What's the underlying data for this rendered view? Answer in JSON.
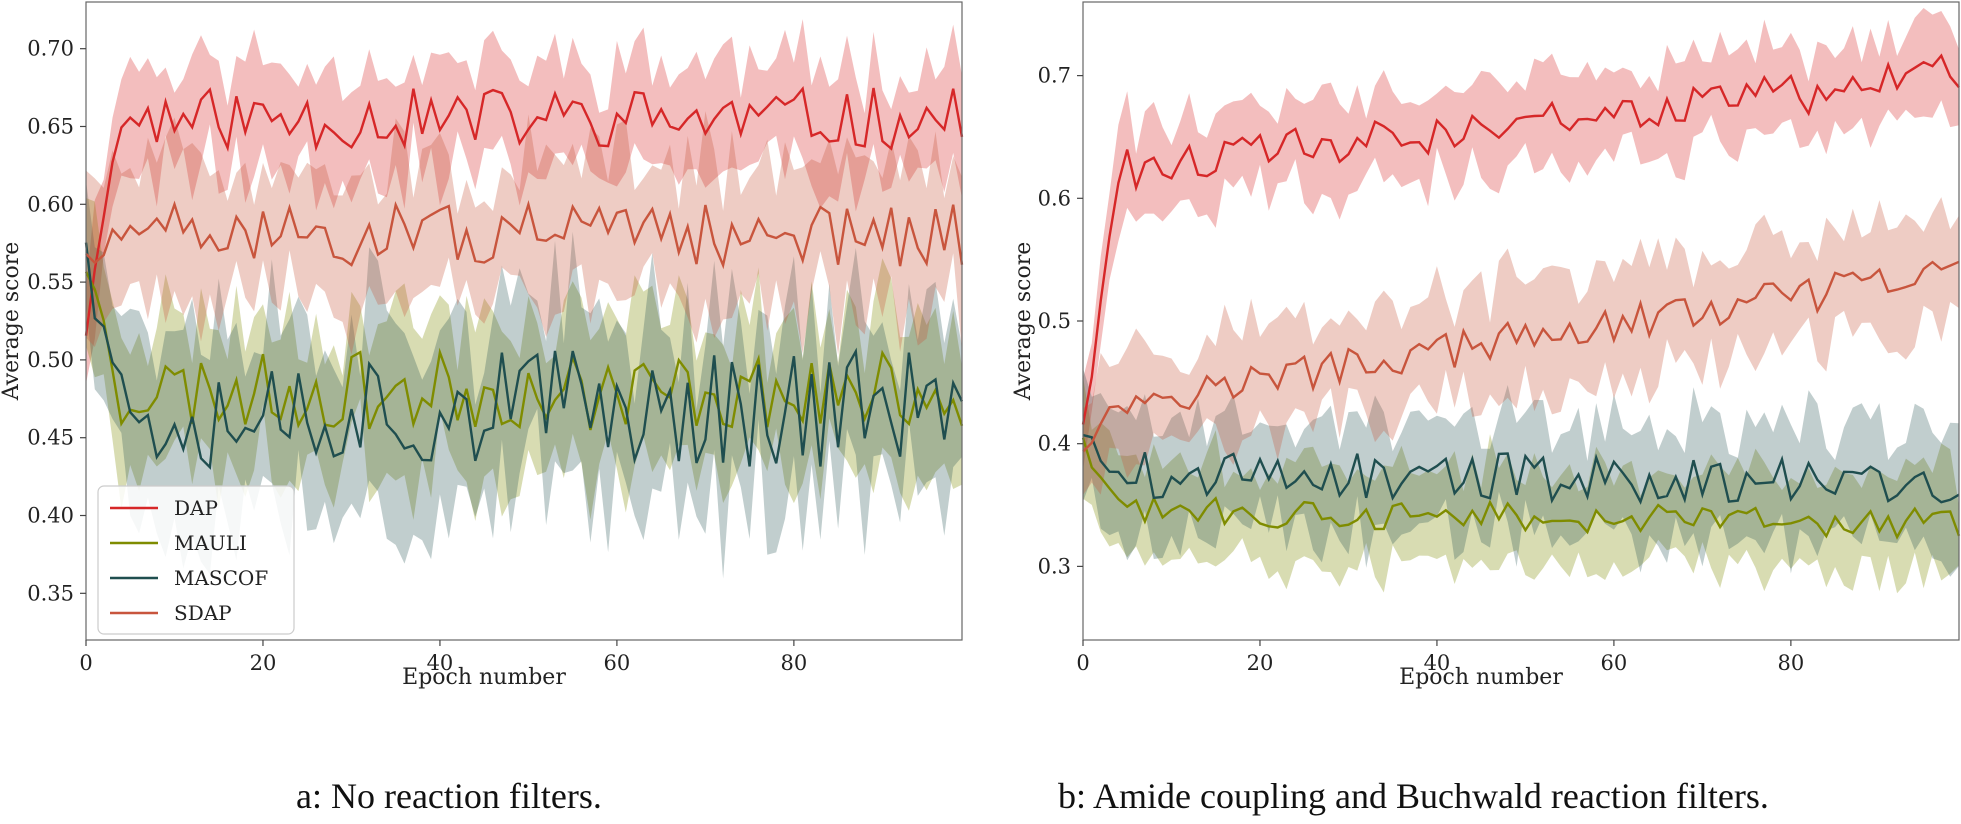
{
  "captions": {
    "a": "a: No reaction filters.",
    "b": "b: Amide coupling and Buchwald reaction filters."
  },
  "colors": {
    "DAP": "#d62728",
    "MAULI": "#7f8c00",
    "MASCOF": "#1f4e4f",
    "SDAP": "#c8553d"
  },
  "chart_data": [
    {
      "type": "line",
      "title": "",
      "xlabel": "Epoch number",
      "ylabel": "Average score",
      "xlim": [
        0,
        99
      ],
      "ylim": [
        0.32,
        0.73
      ],
      "xticks": [
        0,
        20,
        40,
        60,
        80
      ],
      "yticks": [
        0.35,
        0.4,
        0.45,
        0.5,
        0.55,
        0.6,
        0.65,
        0.7
      ],
      "ytick_labels": [
        "0.35",
        "0.40",
        "0.45",
        "0.50",
        "0.55",
        "0.60",
        "0.65",
        "0.70"
      ],
      "legend": "lower-left",
      "shaded_band": "variance band around each series",
      "series": [
        {
          "name": "DAP",
          "start": 0.52,
          "level": 0.655,
          "noise": 0.02,
          "band": 0.035,
          "seed": 11
        },
        {
          "name": "MAULI",
          "start": 0.56,
          "level": 0.48,
          "noise": 0.025,
          "band": 0.045,
          "seed": 23
        },
        {
          "name": "MASCOF",
          "start": 0.57,
          "level": 0.47,
          "noise": 0.04,
          "band": 0.055,
          "seed": 37
        },
        {
          "name": "SDAP",
          "start": 0.56,
          "level": 0.58,
          "noise": 0.02,
          "band": 0.045,
          "seed": 51
        }
      ]
    },
    {
      "type": "line",
      "title": "",
      "xlabel": "Epoch number",
      "ylabel": "Average score",
      "xlim": [
        0,
        99
      ],
      "ylim": [
        0.24,
        0.76
      ],
      "xticks": [
        0,
        20,
        40,
        60,
        80
      ],
      "yticks": [
        0.3,
        0.4,
        0.5,
        0.6,
        0.7
      ],
      "ytick_labels": [
        "0.3",
        "0.4",
        "0.5",
        "0.6",
        "0.7"
      ],
      "legend": "none",
      "shaded_band": "variance band around each series",
      "series": [
        {
          "name": "DAP",
          "start": 0.41,
          "level_start": 0.62,
          "level_end": 0.7,
          "noise": 0.018,
          "band": 0.035,
          "seed": 61
        },
        {
          "name": "MAULI",
          "start": 0.4,
          "level_start": 0.345,
          "level_end": 0.335,
          "noise": 0.012,
          "band": 0.04,
          "seed": 73
        },
        {
          "name": "MASCOF",
          "start": 0.41,
          "level_start": 0.375,
          "level_end": 0.37,
          "noise": 0.02,
          "band": 0.045,
          "seed": 89
        },
        {
          "name": "SDAP",
          "start": 0.4,
          "level_start": 0.43,
          "level_end": 0.54,
          "noise": 0.015,
          "band": 0.045,
          "seed": 97
        }
      ]
    }
  ]
}
